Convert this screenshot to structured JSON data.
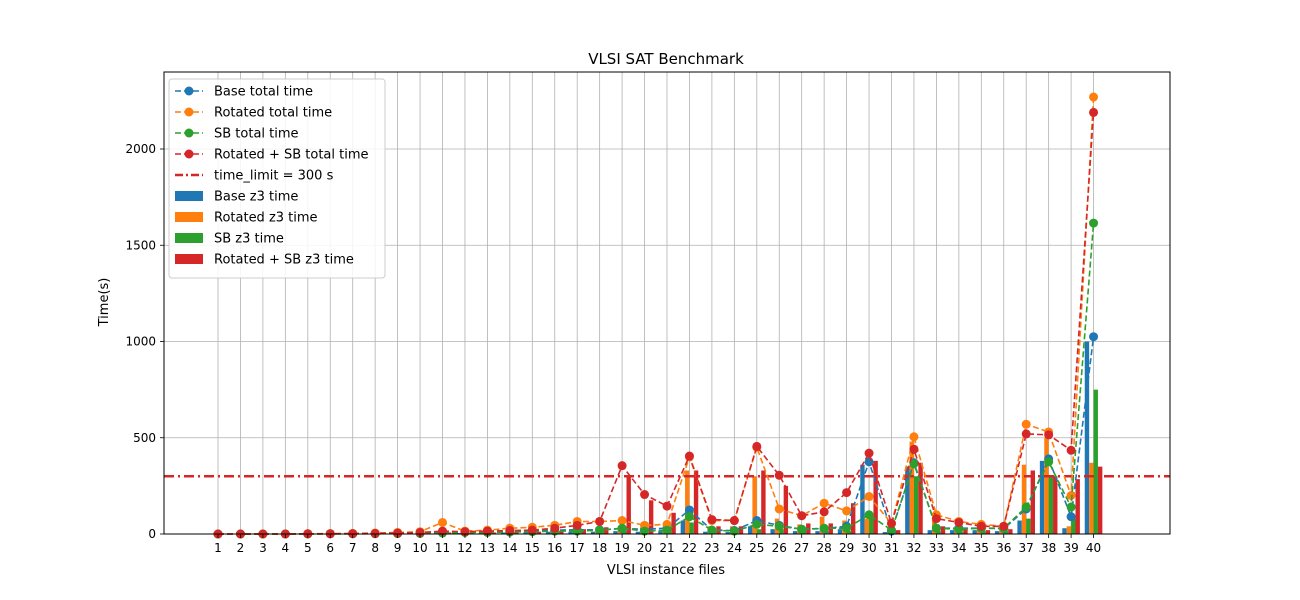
{
  "chart_data": {
    "type": "bar+line",
    "title": "VLSI SAT Benchmark",
    "xlabel": "VLSI instance files",
    "ylabel": "Time(s)",
    "ylim": [
      0,
      2400
    ],
    "yticks": [
      0,
      500,
      1000,
      1500,
      2000
    ],
    "grid": true,
    "legend_position": "top-left",
    "categories": [
      "1",
      "2",
      "3",
      "4",
      "5",
      "6",
      "7",
      "8",
      "9",
      "10",
      "11",
      "12",
      "13",
      "14",
      "15",
      "16",
      "17",
      "18",
      "19",
      "20",
      "21",
      "22",
      "23",
      "24",
      "25",
      "26",
      "27",
      "28",
      "29",
      "30",
      "31",
      "32",
      "33",
      "34",
      "35",
      "36",
      "37",
      "38",
      "39",
      "40"
    ],
    "time_limit": {
      "label": "time_limit = 300 s",
      "value": 300,
      "color": "#d62728"
    },
    "line_series": [
      {
        "name": "Base total time",
        "color": "#1f77b4",
        "values": [
          0,
          0,
          0,
          0,
          1,
          1,
          1,
          2,
          3,
          5,
          8,
          10,
          12,
          15,
          18,
          20,
          22,
          22,
          28,
          25,
          30,
          125,
          20,
          18,
          70,
          45,
          25,
          28,
          40,
          375,
          15,
          370,
          30,
          30,
          30,
          28,
          130,
          390,
          90,
          1025
        ]
      },
      {
        "name": "Rotated total time",
        "color": "#ff7f0e",
        "values": [
          0,
          0,
          0,
          0,
          1,
          2,
          3,
          5,
          8,
          12,
          60,
          15,
          20,
          30,
          35,
          45,
          65,
          65,
          70,
          45,
          50,
          400,
          70,
          70,
          450,
          130,
          95,
          160,
          120,
          195,
          55,
          505,
          100,
          65,
          50,
          40,
          570,
          530,
          200,
          2270
        ]
      },
      {
        "name": "SB total time",
        "color": "#2ca02c",
        "values": [
          0,
          0,
          0,
          0,
          0,
          1,
          1,
          1,
          2,
          3,
          5,
          8,
          8,
          10,
          12,
          15,
          15,
          20,
          30,
          15,
          20,
          90,
          20,
          15,
          50,
          40,
          25,
          30,
          30,
          100,
          20,
          365,
          30,
          25,
          30,
          30,
          140,
          375,
          140,
          1615
        ]
      },
      {
        "name": "Rotated + SB total time",
        "color": "#d62728",
        "values": [
          0,
          0,
          0,
          0,
          1,
          1,
          2,
          3,
          5,
          8,
          15,
          12,
          15,
          18,
          20,
          30,
          45,
          65,
          355,
          205,
          145,
          405,
          75,
          70,
          455,
          305,
          95,
          115,
          215,
          420,
          55,
          440,
          80,
          60,
          40,
          40,
          520,
          515,
          435,
          2190
        ]
      }
    ],
    "bar_series": [
      {
        "name": "Base z3 time",
        "color": "#1f77b4",
        "values": [
          0,
          0,
          0,
          0,
          0,
          0,
          0,
          0,
          1,
          2,
          3,
          5,
          6,
          8,
          10,
          12,
          12,
          12,
          15,
          12,
          15,
          70,
          12,
          10,
          40,
          25,
          15,
          15,
          25,
          360,
          10,
          350,
          20,
          20,
          20,
          15,
          70,
          380,
          30,
          1000
        ]
      },
      {
        "name": "Rotated z3 time",
        "color": "#ff7f0e",
        "values": [
          0,
          0,
          0,
          0,
          0,
          0,
          0,
          1,
          2,
          5,
          20,
          8,
          10,
          15,
          20,
          25,
          35,
          35,
          40,
          20,
          25,
          330,
          40,
          40,
          300,
          80,
          50,
          90,
          70,
          80,
          30,
          480,
          70,
          40,
          30,
          25,
          360,
          500,
          40,
          370
        ]
      },
      {
        "name": "SB z3 time",
        "color": "#2ca02c",
        "values": [
          0,
          0,
          0,
          0,
          0,
          0,
          0,
          0,
          1,
          1,
          2,
          4,
          4,
          5,
          6,
          8,
          8,
          10,
          15,
          8,
          10,
          60,
          10,
          8,
          25,
          25,
          15,
          15,
          15,
          90,
          10,
          300,
          15,
          10,
          15,
          15,
          80,
          305,
          80,
          750
        ]
      },
      {
        "name": "Rotated + SB z3 time",
        "color": "#d62728",
        "values": [
          0,
          0,
          0,
          0,
          0,
          0,
          1,
          1,
          2,
          4,
          8,
          6,
          8,
          10,
          12,
          15,
          25,
          35,
          300,
          175,
          110,
          330,
          40,
          40,
          330,
          250,
          55,
          55,
          160,
          380,
          20,
          370,
          40,
          30,
          20,
          25,
          330,
          300,
          285,
          350
        ]
      }
    ]
  }
}
